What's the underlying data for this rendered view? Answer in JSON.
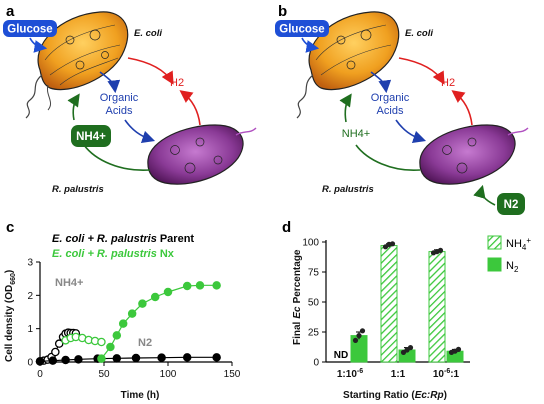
{
  "panels": {
    "a": {
      "letter": "a",
      "glucose": "Glucose",
      "ecoli": "E. coli",
      "h2": "H2",
      "organic_acids_1": "Organic",
      "organic_acids_2": "Acids",
      "nh4": "NH4+",
      "rpalustris": "R. palustris"
    },
    "b": {
      "letter": "b",
      "glucose": "Glucose",
      "ecoli": "E. coli",
      "h2": "H2",
      "organic_acids_1": "Organic",
      "organic_acids_2": "Acids",
      "nh4": "NH4+",
      "rpalustris": "R. palustris",
      "n2": "N2"
    }
  },
  "colors": {
    "glucose_blue": "#1e4fd6",
    "h2_red": "#e02020",
    "acids_blue": "#1f3fae",
    "nh4_green": "#1f6e1f",
    "parent_black": "#000000",
    "nx_green": "#3cc83c",
    "ecoli_orange": "#f0a020",
    "rpal_purple": "#7a2a86"
  },
  "chart_data": [
    {
      "type": "line",
      "panel_letter": "c",
      "legend_parent_prefix": "E. coli + R. palustris",
      "legend_parent_suffix": "Parent",
      "legend_nx_prefix": "E. coli + R. palustris",
      "legend_nx_suffix": "Nx",
      "ylabel_prefix": "Cell density (OD",
      "ylabel_sub": "660",
      "ylabel_suffix": ")",
      "xlabel": "Time (h)",
      "xlim": [
        0,
        150
      ],
      "ylim": [
        0,
        3
      ],
      "xticks": [
        "0",
        "50",
        "100",
        "150"
      ],
      "yticks": [
        "0",
        "1",
        "2",
        "3"
      ],
      "annot_nh4": "NH4+",
      "annot_n2": "N2",
      "series": [
        {
          "name": "Parent NH4+",
          "color": "#000000",
          "filled": false,
          "x": [
            0,
            3,
            6,
            9,
            12,
            15,
            18,
            20,
            22,
            24,
            26,
            28
          ],
          "y": [
            0.02,
            0.04,
            0.07,
            0.15,
            0.3,
            0.55,
            0.75,
            0.85,
            0.88,
            0.87,
            0.87,
            0.86
          ]
        },
        {
          "name": "Nx NH4+",
          "color": "#3cc83c",
          "filled": false,
          "x": [
            20,
            24,
            28,
            33,
            38,
            43,
            48
          ],
          "y": [
            0.65,
            0.72,
            0.75,
            0.72,
            0.66,
            0.63,
            0.6
          ]
        },
        {
          "name": "Parent N2",
          "color": "#000000",
          "filled": true,
          "x": [
            0,
            10,
            20,
            30,
            45,
            60,
            75,
            95,
            115,
            138
          ],
          "y": [
            0.02,
            0.04,
            0.06,
            0.08,
            0.1,
            0.11,
            0.12,
            0.13,
            0.14,
            0.14
          ]
        },
        {
          "name": "Nx N2",
          "color": "#3cc83c",
          "filled": true,
          "x": [
            48,
            55,
            60,
            65,
            72,
            80,
            90,
            100,
            115,
            125,
            138
          ],
          "y": [
            0.1,
            0.45,
            0.8,
            1.15,
            1.45,
            1.75,
            1.95,
            2.1,
            2.28,
            2.3,
            2.3
          ]
        }
      ]
    },
    {
      "type": "bar",
      "panel_letter": "d",
      "ylabel_prefix": "Final",
      "ylabel_italic": "Ec",
      "ylabel_suffix": "Percentage",
      "xlabel_prefix": "Starting Ratio (",
      "xlabel_italic": "Ec:Rp",
      "xlabel_suffix": ")",
      "ylim": [
        0,
        100
      ],
      "yticks": [
        "0",
        "25",
        "50",
        "75",
        "100"
      ],
      "categories": [
        "1:10-6",
        "1:1",
        "10-6:1"
      ],
      "nd_label": "ND",
      "series": [
        {
          "name": "NH4+",
          "values": [
            null,
            97,
            92
          ],
          "errors": [
            null,
            1.5,
            1.5
          ],
          "pattern": "hatch"
        },
        {
          "name": "N2",
          "values": [
            22,
            10,
            9
          ],
          "errors": [
            3,
            2,
            1.5
          ],
          "pattern": "solid"
        }
      ],
      "points": {
        "NH4+": [
          [],
          [
            96,
            98,
            98.5
          ],
          [
            91,
            92,
            93
          ]
        ],
        "N2": [
          [
            18,
            22,
            26
          ],
          [
            8,
            10,
            12
          ],
          [
            8,
            9,
            10.5
          ]
        ]
      }
    }
  ]
}
